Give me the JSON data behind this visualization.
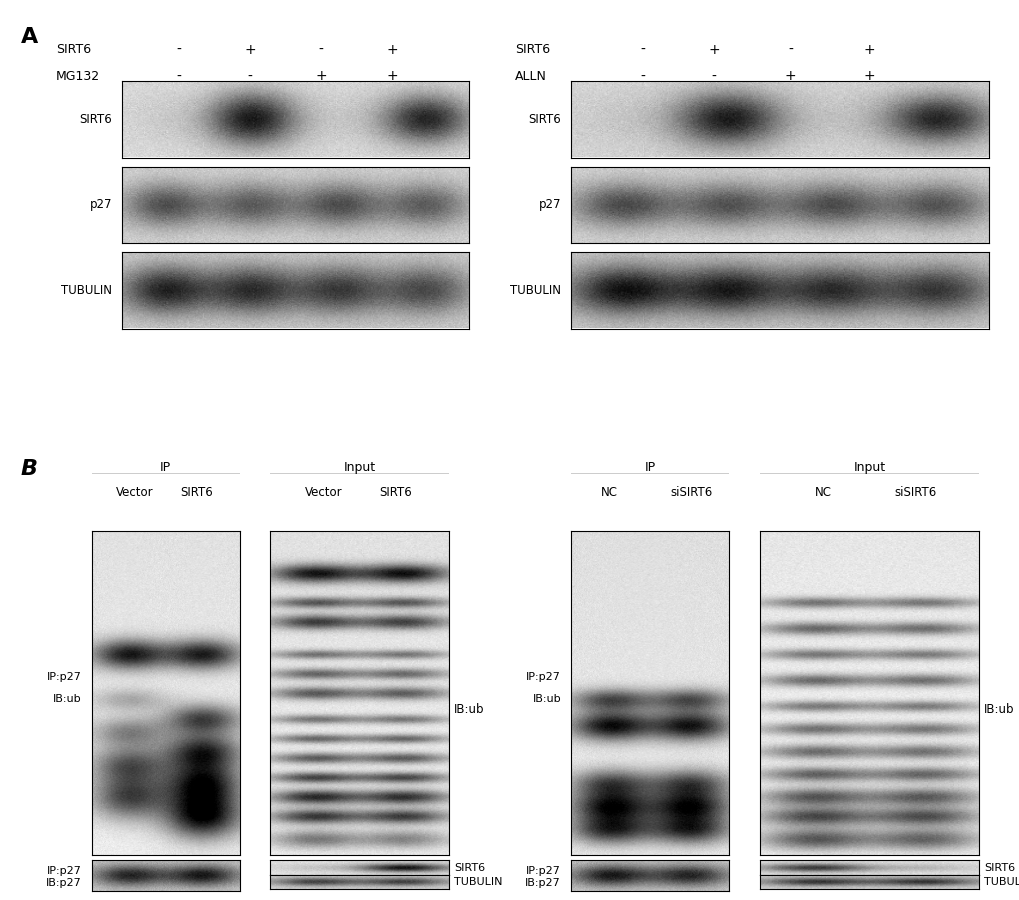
{
  "bg_color": "#ffffff",
  "panel_A_label": "A",
  "panel_B_label": "B",
  "A_left_row_labels": [
    "SIRT6",
    "MG132"
  ],
  "A_right_row_labels": [
    "SIRT6",
    "ALLN"
  ],
  "A_col_vals": [
    [
      "-",
      "+"
    ],
    [
      "-",
      "+"
    ],
    [
      "-",
      "+"
    ],
    [
      "-",
      "+"
    ]
  ],
  "A_blot_labels": [
    "SIRT6",
    "p27",
    "TUBULIN"
  ],
  "B_left_ip_cols": [
    "Vector",
    "SIRT6"
  ],
  "B_left_input_cols": [
    "Vector",
    "SIRT6"
  ],
  "B_right_ip_cols": [
    "NC",
    "siSIRT6"
  ],
  "B_right_input_cols": [
    "NC",
    "siSIRT6"
  ],
  "B_left_main_left_labels": [
    "IP:p27",
    "IB:ub"
  ],
  "B_left_main_right_label": "IB:ub",
  "B_left_bot_left_labels": [
    "IP:p27",
    "IB:p27"
  ],
  "B_left_bot_right_labels": [
    "SIRT6",
    "TUBULIN"
  ],
  "B_right_main_left_labels": [
    "IP:p27",
    "IB:ub"
  ],
  "B_right_main_right_label": "IB:ub",
  "B_right_bot_left_labels": [
    "IP:p27",
    "IB:p27"
  ],
  "B_right_bot_right_labels": [
    "SIRT6",
    "TUBULIN"
  ],
  "IP_header": "IP",
  "Input_header": "Input"
}
